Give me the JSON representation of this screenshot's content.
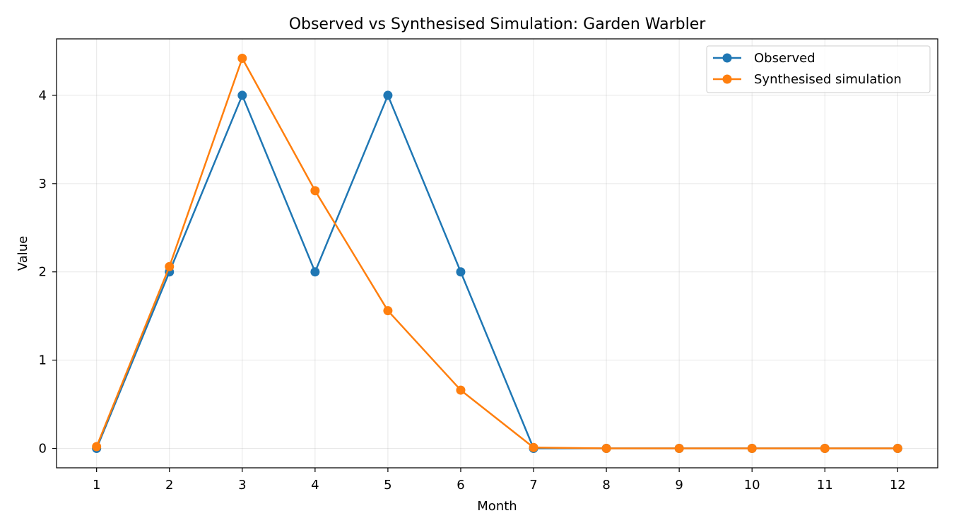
{
  "chart_data": {
    "type": "line",
    "title": "Observed vs Synthesised Simulation: Garden Warbler",
    "xlabel": "Month",
    "ylabel": "Value",
    "x": [
      1,
      2,
      3,
      4,
      5,
      6,
      7,
      8,
      9,
      10,
      11,
      12
    ],
    "xlim": [
      0.45,
      12.55
    ],
    "ylim": [
      -0.22,
      4.64
    ],
    "yticks": [
      0,
      1,
      2,
      3,
      4
    ],
    "grid": true,
    "legend_position": "upper right",
    "series": [
      {
        "name": "Observed",
        "color": "#1f77b4",
        "values": [
          0,
          2,
          4,
          2,
          4,
          2,
          0,
          0,
          0,
          0,
          0,
          0
        ]
      },
      {
        "name": "Synthesised simulation",
        "color": "#ff7f0e",
        "values": [
          0.02,
          2.06,
          4.42,
          2.92,
          1.56,
          0.66,
          0.01,
          0.0,
          0.0,
          0.0,
          0.0,
          0.0
        ]
      }
    ]
  }
}
